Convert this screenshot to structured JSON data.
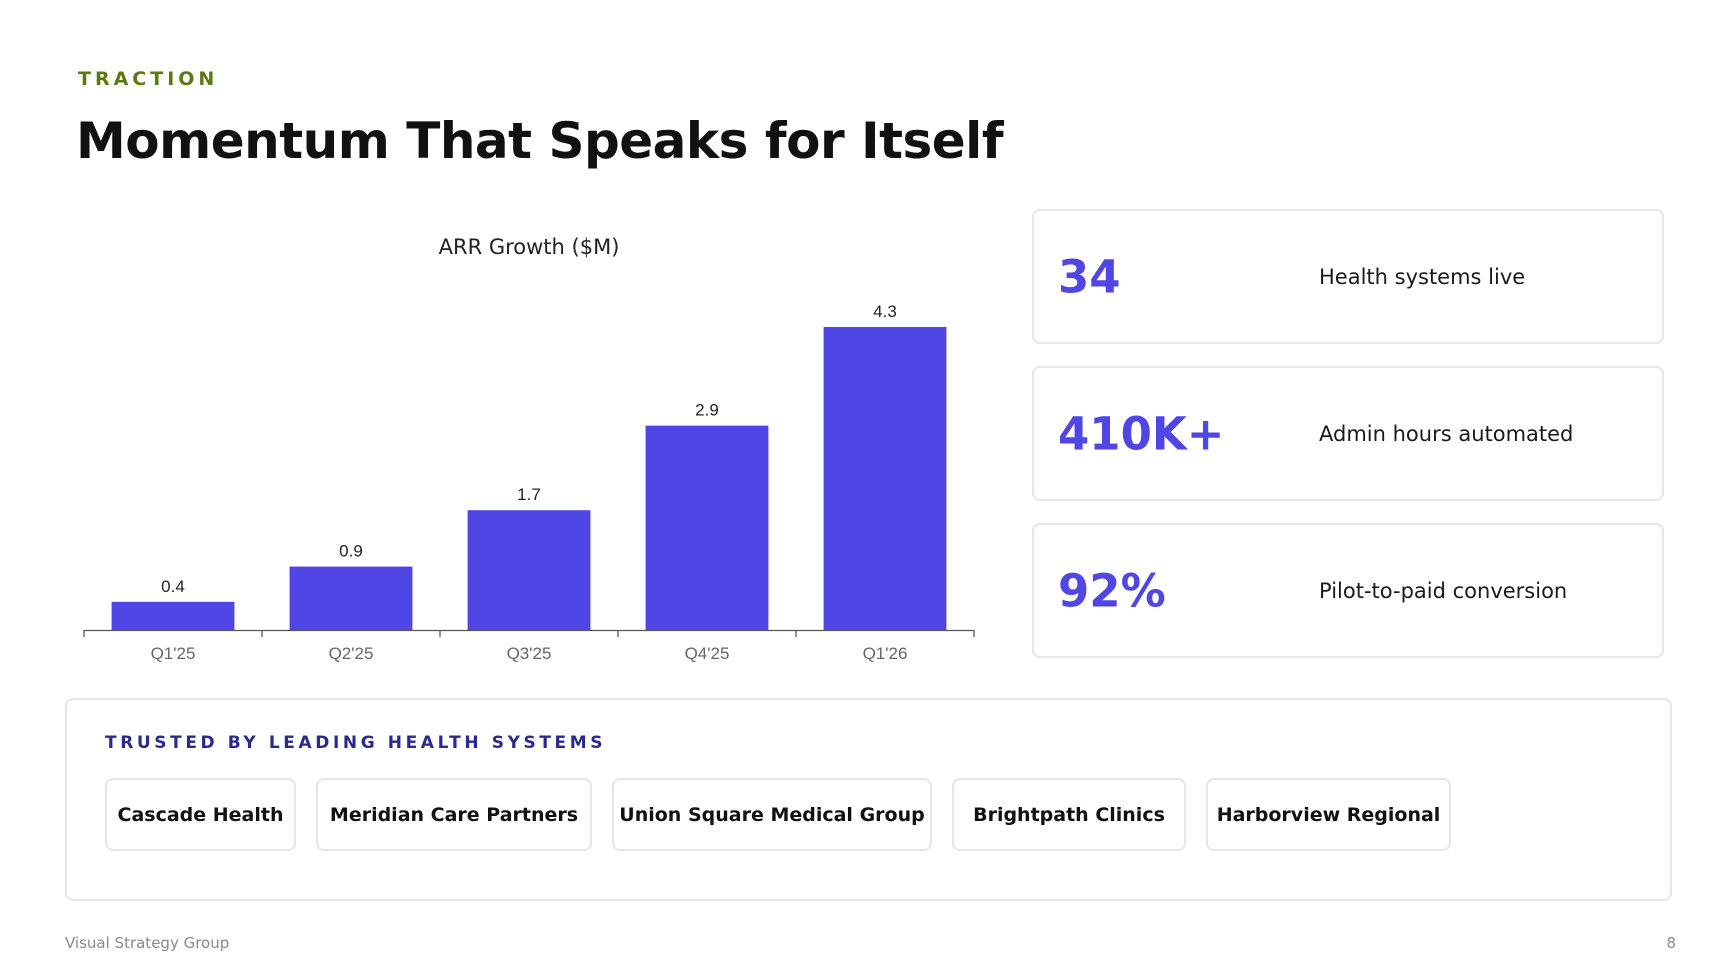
{
  "slide": {
    "eyebrow": "TRACTION",
    "title": "Momentum That Speaks for Itself",
    "footer_left": "Visual Strategy Group",
    "page_number": "8"
  },
  "chart_data": {
    "type": "bar",
    "title": "ARR Growth ($M)",
    "categories": [
      "Q1'25",
      "Q2'25",
      "Q3'25",
      "Q4'25",
      "Q1'26"
    ],
    "values": [
      0.4,
      0.9,
      1.7,
      2.9,
      4.3
    ],
    "data_labels": [
      "0.4",
      "0.9",
      "1.7",
      "2.9",
      "4.3"
    ],
    "xlabel": "",
    "ylabel": "",
    "ylim": [
      0,
      4.3
    ],
    "grid": false,
    "legend": "none",
    "bar_color": "#4f46e5"
  },
  "stats": [
    {
      "value": "34",
      "label": "Health systems live"
    },
    {
      "value": "410K+",
      "label": "Admin hours automated"
    },
    {
      "value": "92%",
      "label": "Pilot-to-paid conversion"
    }
  ],
  "trusted": {
    "heading": "TRUSTED BY LEADING HEALTH SYSTEMS",
    "logos": [
      "Cascade Health",
      "Meridian Care Partners",
      "Union Square Medical Group",
      "Brightpath Clinics",
      "Harborview Regional"
    ]
  },
  "colors": {
    "accent": "#4f46e5",
    "eyebrow": "#5a7a12",
    "heading_navy": "#2a2a8e"
  }
}
